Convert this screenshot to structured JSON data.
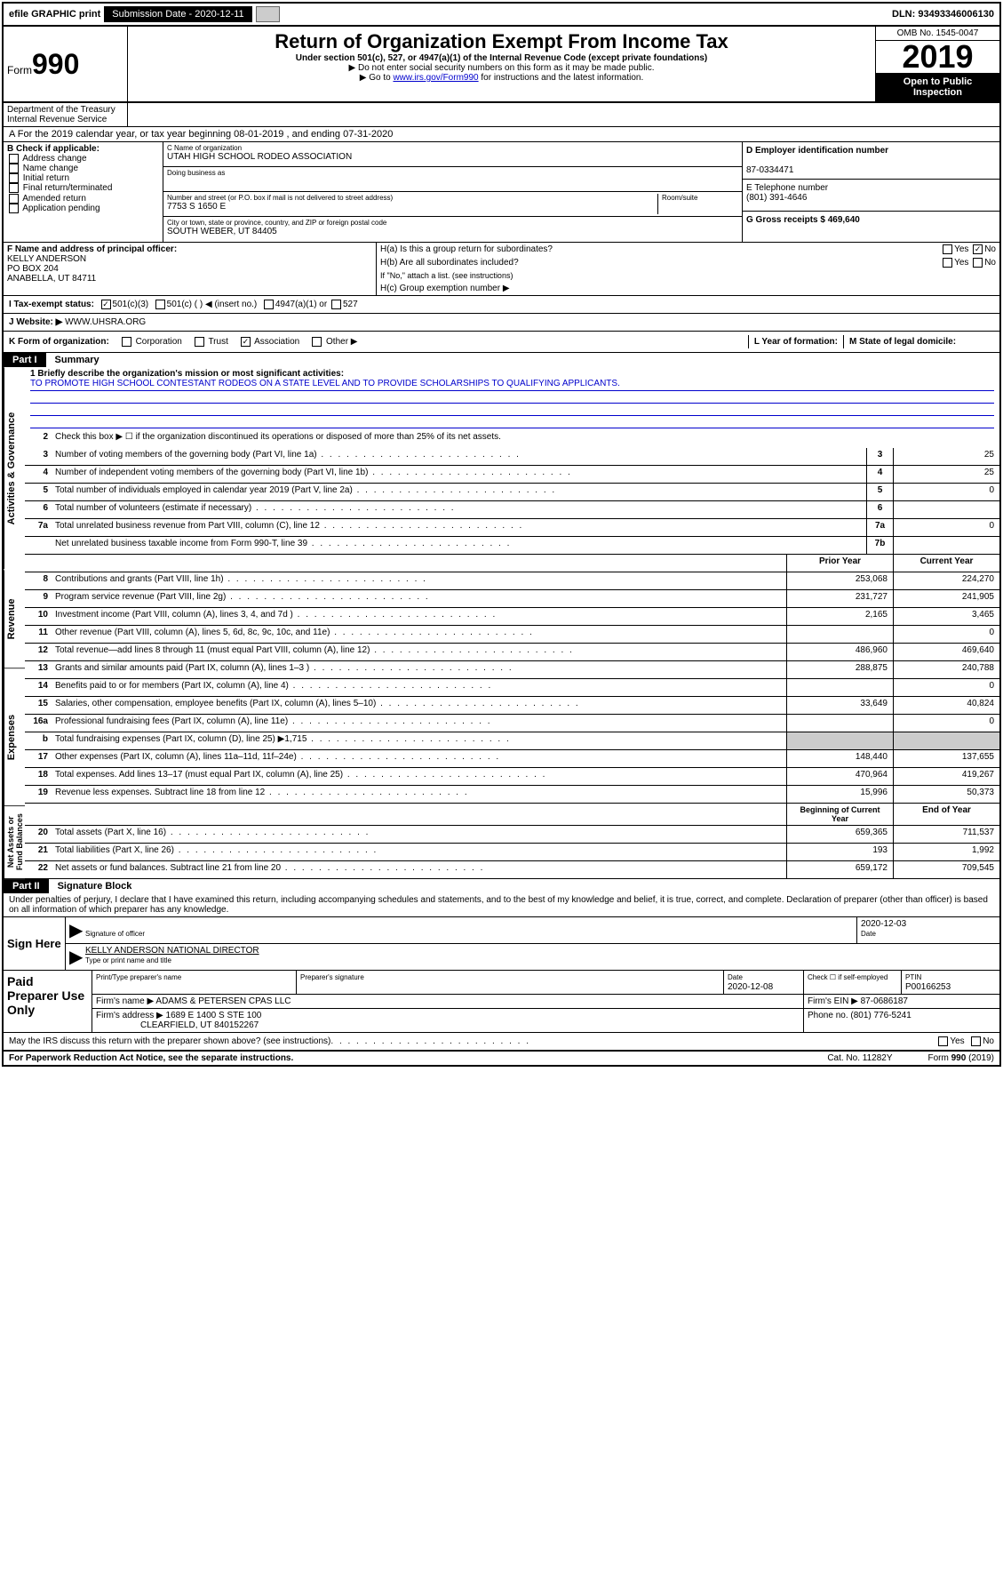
{
  "topbar": {
    "efile": "efile GRAPHIC print",
    "submission_label": "Submission Date - 2020-12-11",
    "dln": "DLN: 93493346006130"
  },
  "header": {
    "form_prefix": "Form",
    "form_num": "990",
    "title": "Return of Organization Exempt From Income Tax",
    "subtitle": "Under section 501(c), 527, or 4947(a)(1) of the Internal Revenue Code (except private foundations)",
    "note1": "▶ Do not enter social security numbers on this form as it may be made public.",
    "note2_prefix": "▶ Go to ",
    "note2_link": "www.irs.gov/Form990",
    "note2_suffix": " for instructions and the latest information.",
    "omb": "OMB No. 1545-0047",
    "year": "2019",
    "open": "Open to Public Inspection",
    "dept": "Department of the Treasury Internal Revenue Service"
  },
  "line_a": "A For the 2019 calendar year, or tax year beginning 08-01-2019   , and ending 07-31-2020",
  "section_b": {
    "header": "B Check if applicable:",
    "addr_change": "Address change",
    "name_change": "Name change",
    "initial": "Initial return",
    "final": "Final return/terminated",
    "amended": "Amended return",
    "app": "Application pending"
  },
  "section_c": {
    "name_label": "C Name of organization",
    "name": "UTAH HIGH SCHOOL RODEO ASSOCIATION",
    "dba_label": "Doing business as",
    "dba": "",
    "street_label": "Number and street (or P.O. box if mail is not delivered to street address)",
    "street": "7753 S 1650 E",
    "room_label": "Room/suite",
    "room": "",
    "city_label": "City or town, state or province, country, and ZIP or foreign postal code",
    "city": "SOUTH WEBER, UT  84405"
  },
  "section_d": {
    "ein_label": "D Employer identification number",
    "ein": "87-0334471",
    "phone_label": "E Telephone number",
    "phone": "(801) 391-4646",
    "gross_label": "G Gross receipts $ 469,640"
  },
  "section_f": {
    "label": "F Name and address of principal officer:",
    "name": "KELLY ANDERSON",
    "addr1": "PO BOX 204",
    "addr2": "ANABELLA, UT  84711"
  },
  "section_h": {
    "ha": "H(a) Is this a group return for subordinates?",
    "hb": "H(b) Are all subordinates included?",
    "hb_note": "If \"No,\" attach a list. (see instructions)",
    "hc": "H(c) Group exemption number ▶",
    "yes": "Yes",
    "no": "No"
  },
  "tax_exempt": {
    "label": "I Tax-exempt status:",
    "c3": "501(c)(3)",
    "c_other": "501(c) (  ) ◀ (insert no.)",
    "a1": "4947(a)(1) or",
    "527": "527"
  },
  "website": {
    "label": "J Website: ▶",
    "url": "WWW.UHSRA.ORG"
  },
  "line_k": {
    "label": "K Form of organization:",
    "corp": "Corporation",
    "trust": "Trust",
    "assoc": "Association",
    "other": "Other ▶"
  },
  "line_l": {
    "label": "L Year of formation:"
  },
  "line_m": {
    "label": "M State of legal domicile:"
  },
  "part1": {
    "num": "Part I",
    "title": "Summary",
    "tabs": {
      "gov": "Activities & Governance",
      "rev": "Revenue",
      "exp": "Expenses",
      "net": "Net Assets or Fund Balances"
    },
    "q1": "1 Briefly describe the organization's mission or most significant activities:",
    "mission": "TO PROMOTE HIGH SCHOOL CONTESTANT RODEOS ON A STATE LEVEL AND TO PROVIDE SCHOLARSHIPS TO QUALIFYING APPLICANTS.",
    "q2": "Check this box ▶ ☐ if the organization discontinued its operations or disposed of more than 25% of its net assets.",
    "rows_gov": [
      {
        "n": "3",
        "t": "Number of voting members of the governing body (Part VI, line 1a)",
        "b": "3",
        "v": "25"
      },
      {
        "n": "4",
        "t": "Number of independent voting members of the governing body (Part VI, line 1b)",
        "b": "4",
        "v": "25"
      },
      {
        "n": "5",
        "t": "Total number of individuals employed in calendar year 2019 (Part V, line 2a)",
        "b": "5",
        "v": "0"
      },
      {
        "n": "6",
        "t": "Total number of volunteers (estimate if necessary)",
        "b": "6",
        "v": ""
      },
      {
        "n": "7a",
        "t": "Total unrelated business revenue from Part VIII, column (C), line 12",
        "b": "7a",
        "v": "0"
      },
      {
        "n": "",
        "t": "Net unrelated business taxable income from Form 990-T, line 39",
        "b": "7b",
        "v": ""
      }
    ],
    "hdr_prior": "Prior Year",
    "hdr_curr": "Current Year",
    "rows_rev": [
      {
        "n": "8",
        "t": "Contributions and grants (Part VIII, line 1h)",
        "p": "253,068",
        "c": "224,270"
      },
      {
        "n": "9",
        "t": "Program service revenue (Part VIII, line 2g)",
        "p": "231,727",
        "c": "241,905"
      },
      {
        "n": "10",
        "t": "Investment income (Part VIII, column (A), lines 3, 4, and 7d )",
        "p": "2,165",
        "c": "3,465"
      },
      {
        "n": "11",
        "t": "Other revenue (Part VIII, column (A), lines 5, 6d, 8c, 9c, 10c, and 11e)",
        "p": "",
        "c": "0"
      },
      {
        "n": "12",
        "t": "Total revenue—add lines 8 through 11 (must equal Part VIII, column (A), line 12)",
        "p": "486,960",
        "c": "469,640"
      }
    ],
    "rows_exp": [
      {
        "n": "13",
        "t": "Grants and similar amounts paid (Part IX, column (A), lines 1–3 )",
        "p": "288,875",
        "c": "240,788"
      },
      {
        "n": "14",
        "t": "Benefits paid to or for members (Part IX, column (A), line 4)",
        "p": "",
        "c": "0"
      },
      {
        "n": "15",
        "t": "Salaries, other compensation, employee benefits (Part IX, column (A), lines 5–10)",
        "p": "33,649",
        "c": "40,824"
      },
      {
        "n": "16a",
        "t": "Professional fundraising fees (Part IX, column (A), line 11e)",
        "p": "",
        "c": "0"
      },
      {
        "n": "b",
        "t": "Total fundraising expenses (Part IX, column (D), line 25) ▶1,715",
        "p": "gray",
        "c": "gray"
      },
      {
        "n": "17",
        "t": "Other expenses (Part IX, column (A), lines 11a–11d, 11f–24e)",
        "p": "148,440",
        "c": "137,655"
      },
      {
        "n": "18",
        "t": "Total expenses. Add lines 13–17 (must equal Part IX, column (A), line 25)",
        "p": "470,964",
        "c": "419,267"
      },
      {
        "n": "19",
        "t": "Revenue less expenses. Subtract line 18 from line 12",
        "p": "15,996",
        "c": "50,373"
      }
    ],
    "hdr_beg": "Beginning of Current Year",
    "hdr_end": "End of Year",
    "rows_net": [
      {
        "n": "20",
        "t": "Total assets (Part X, line 16)",
        "p": "659,365",
        "c": "711,537"
      },
      {
        "n": "21",
        "t": "Total liabilities (Part X, line 26)",
        "p": "193",
        "c": "1,992"
      },
      {
        "n": "22",
        "t": "Net assets or fund balances. Subtract line 21 from line 20",
        "p": "659,172",
        "c": "709,545"
      }
    ]
  },
  "part2": {
    "num": "Part II",
    "title": "Signature Block",
    "perjury": "Under penalties of perjury, I declare that I have examined this return, including accompanying schedules and statements, and to the best of my knowledge and belief, it is true, correct, and complete. Declaration of preparer (other than officer) is based on all information of which preparer has any knowledge.",
    "sign_here": "Sign Here",
    "sig_officer": "Signature of officer",
    "sig_date": "2020-12-03",
    "date_label": "Date",
    "officer_name": "KELLY ANDERSON  NATIONAL DIRECTOR",
    "type_name": "Type or print name and title",
    "paid": "Paid Preparer Use Only",
    "prep_name_label": "Print/Type preparer's name",
    "prep_sig_label": "Preparer's signature",
    "prep_date": "2020-12-08",
    "check_if": "Check ☐ if self-employed",
    "ptin_label": "PTIN",
    "ptin": "P00166253",
    "firm_name_label": "Firm's name    ▶",
    "firm_name": "ADAMS & PETERSEN CPAS LLC",
    "firm_ein_label": "Firm's EIN ▶",
    "firm_ein": "87-0686187",
    "firm_addr_label": "Firm's address ▶",
    "firm_addr1": "1689 E 1400 S STE 100",
    "firm_addr2": "CLEARFIELD, UT  840152267",
    "phone_label": "Phone no.",
    "phone": "(801) 776-5241",
    "discuss": "May the IRS discuss this return with the preparer shown above? (see instructions)"
  },
  "footer": {
    "pra": "For Paperwork Reduction Act Notice, see the separate instructions.",
    "cat": "Cat. No. 11282Y",
    "form": "Form 990 (2019)"
  }
}
